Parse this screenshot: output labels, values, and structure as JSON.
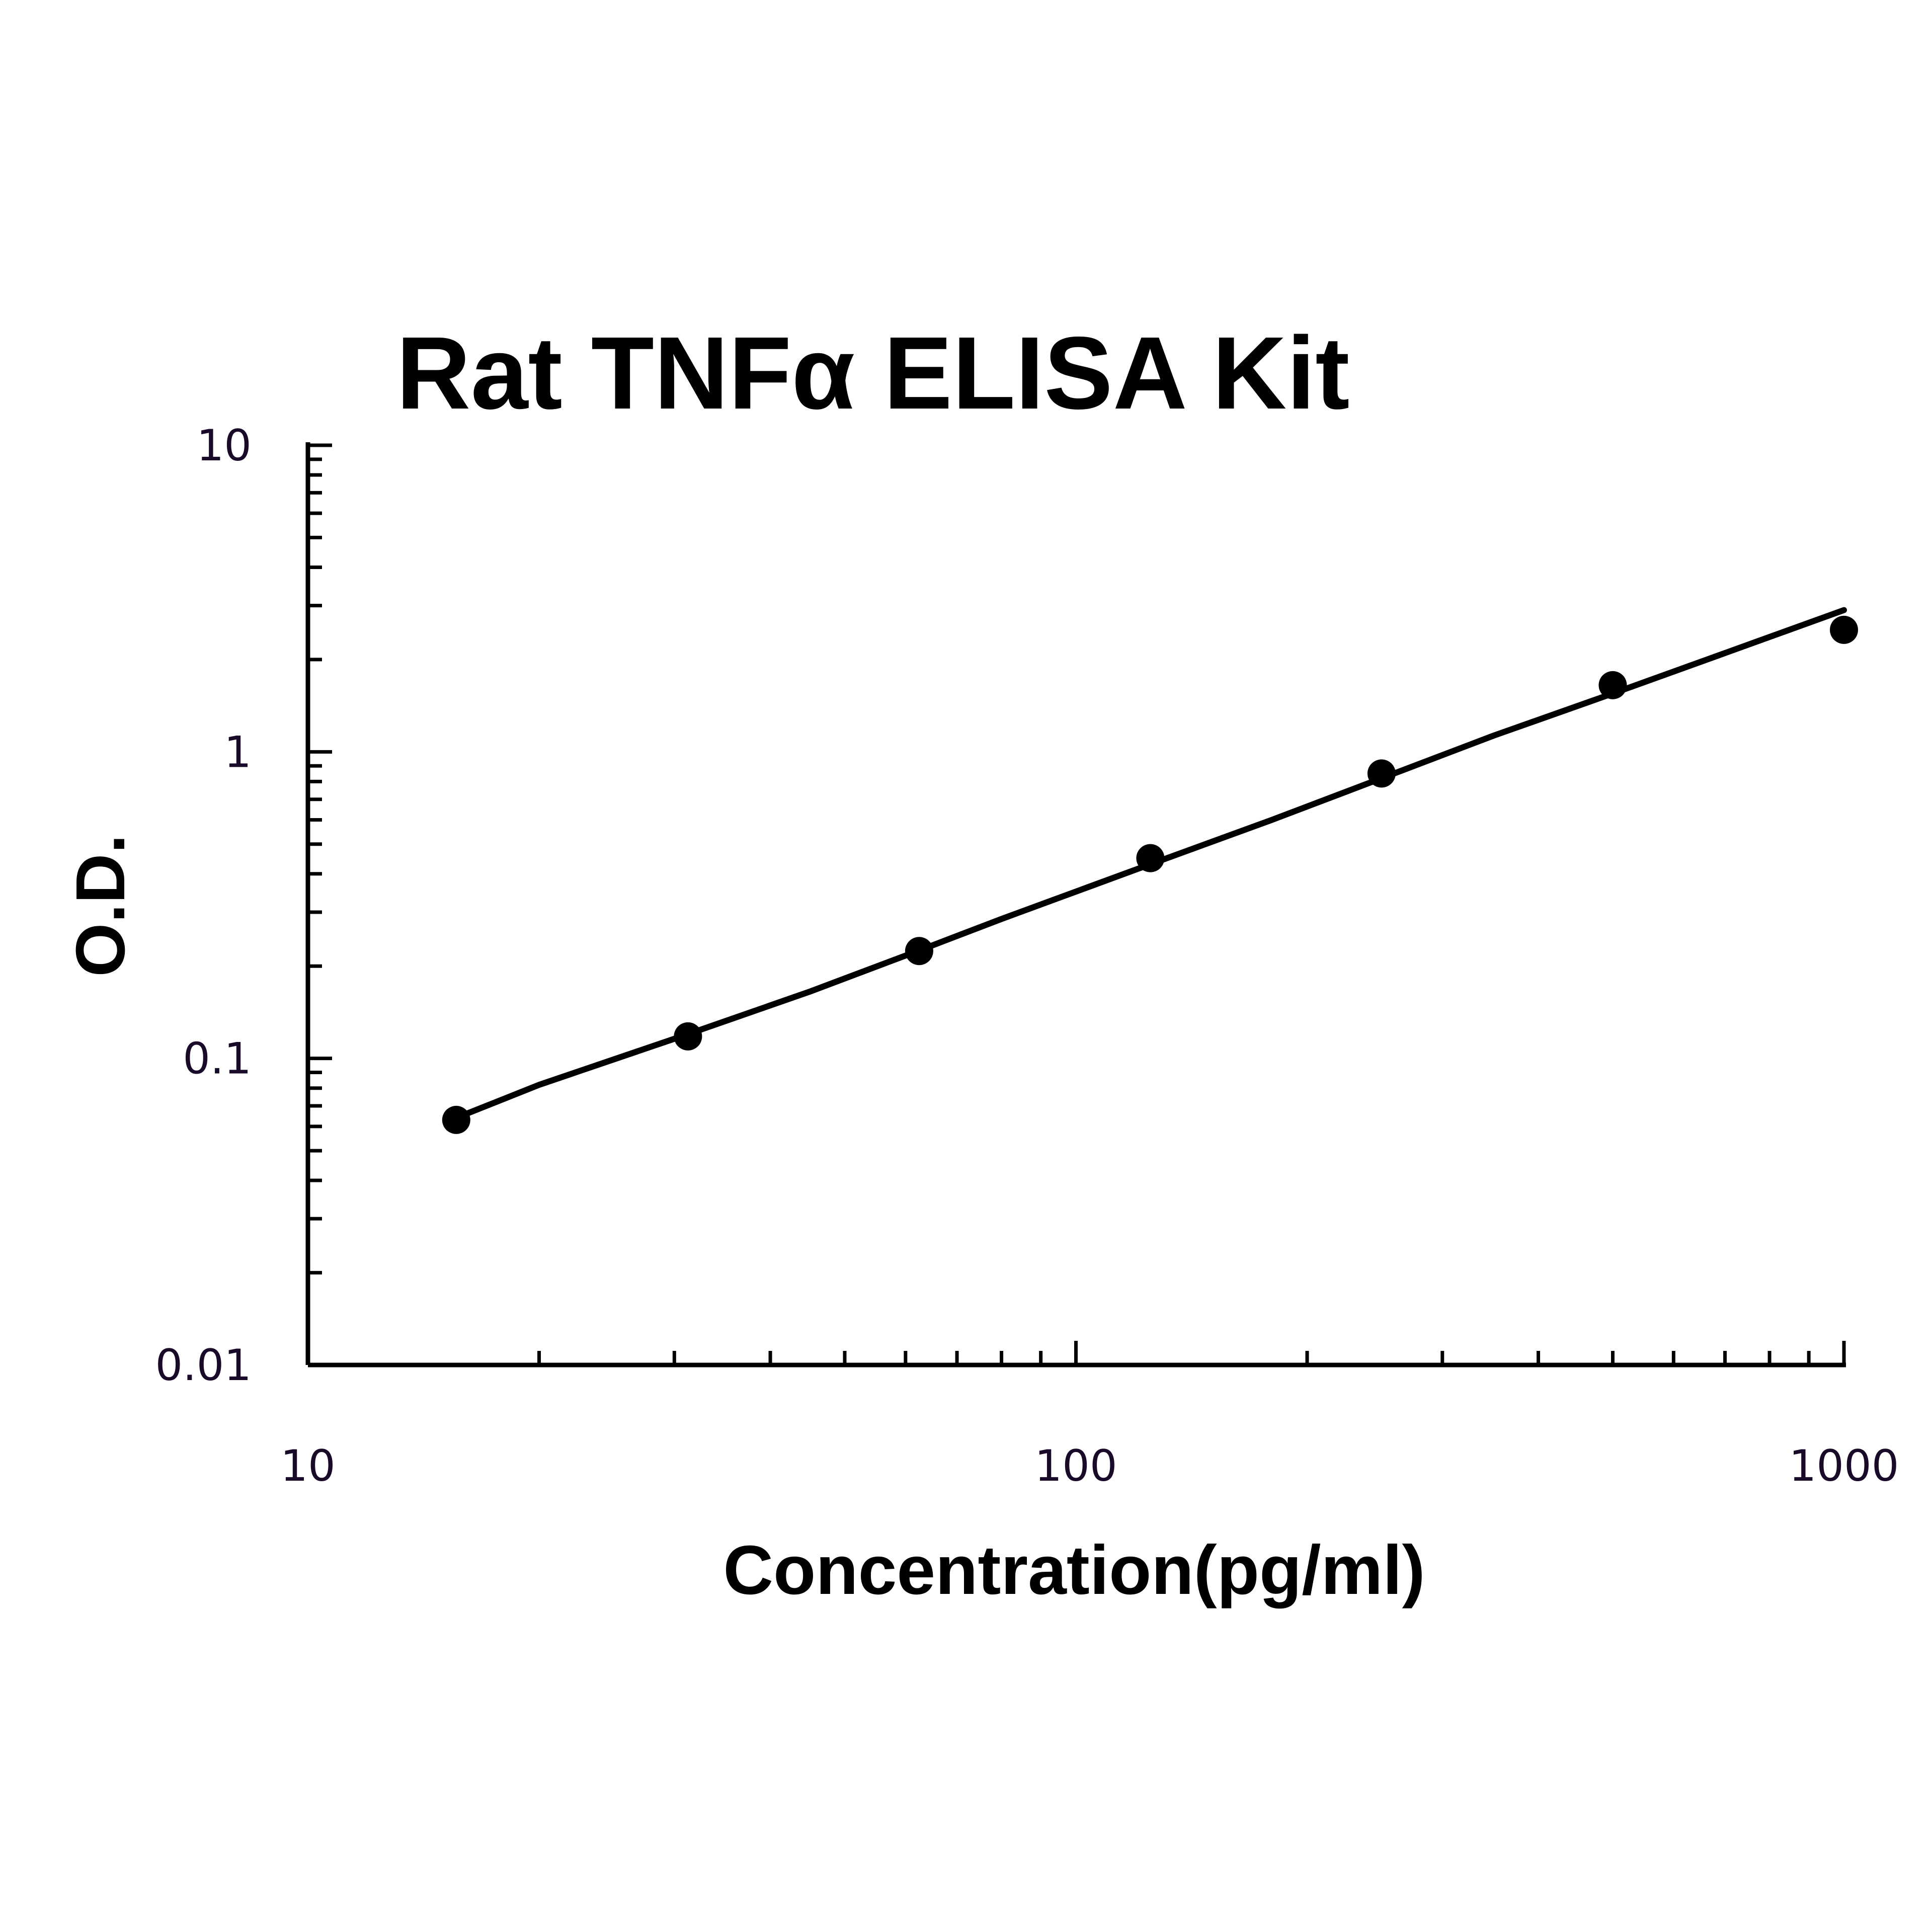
{
  "chart_data": {
    "type": "scatter",
    "title": "Rat TNFα ELISA Kit",
    "xlabel": "Concentration(pg/ml)",
    "ylabel": "O.D.",
    "x_scale": "log",
    "y_scale": "log",
    "xlim": [
      10,
      1000
    ],
    "ylim": [
      0.01,
      10
    ],
    "x_ticks": [
      "10",
      "100",
      "1000"
    ],
    "y_ticks": [
      "0.01",
      "0.1",
      "1",
      "10"
    ],
    "grid": false,
    "legend": "none",
    "series": [
      {
        "x": [
          15.6,
          31.25,
          62.5,
          125,
          250,
          500,
          1000
        ],
        "y": [
          0.063,
          0.118,
          0.224,
          0.45,
          0.85,
          1.65,
          2.5
        ]
      }
    ],
    "fit_curve": {
      "x": [
        15.6,
        20,
        31.25,
        45,
        62.5,
        80,
        100,
        125,
        180,
        250,
        350,
        500,
        700,
        1000
      ],
      "y": [
        0.064,
        0.082,
        0.12,
        0.165,
        0.225,
        0.285,
        0.35,
        0.43,
        0.6,
        0.82,
        1.13,
        1.55,
        2.1,
        2.9
      ]
    },
    "colors": {
      "series": "#000000",
      "axes": "#000000",
      "tick_text": "#1a0a2a"
    }
  }
}
